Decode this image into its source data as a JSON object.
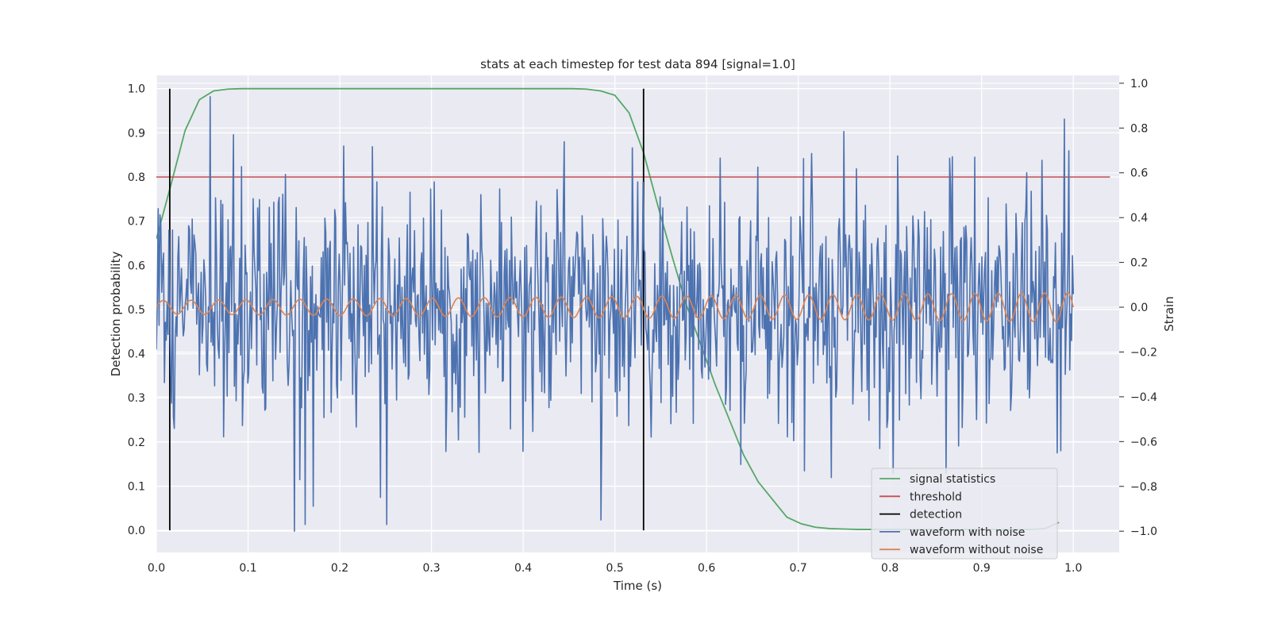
{
  "chart_data": {
    "type": "line",
    "title": "stats at each timestep for test data 894 [signal=1.0]",
    "xlabel": "Time (s)",
    "ylabel": "Detection probability",
    "y2label": "Strain",
    "xlim": [
      0.0,
      1.05
    ],
    "ylim": [
      -0.05,
      1.03
    ],
    "y2lim": [
      -1.095,
      1.035
    ],
    "grid": true,
    "legend_position": "lower right",
    "x_ticks": [
      "0.0",
      "0.1",
      "0.2",
      "0.3",
      "0.4",
      "0.5",
      "0.6",
      "0.7",
      "0.8",
      "0.9",
      "1.0"
    ],
    "y_ticks": [
      "0.0",
      "0.1",
      "0.2",
      "0.3",
      "0.4",
      "0.5",
      "0.6",
      "0.7",
      "0.8",
      "0.9",
      "1.0"
    ],
    "y2_ticks": [
      "−1.0",
      "−0.8",
      "−0.6",
      "−0.4",
      "−0.2",
      "0.0",
      "0.2",
      "0.4",
      "0.6",
      "0.8",
      "1.0"
    ],
    "series": [
      {
        "name": "signal statistics",
        "color": "#55a868",
        "axis": "left",
        "x": [
          0.0,
          0.0156,
          0.0313,
          0.0469,
          0.0625,
          0.0781,
          0.0938,
          0.1094,
          0.125,
          0.1406,
          0.1563,
          0.1719,
          0.1875,
          0.2031,
          0.2188,
          0.2344,
          0.25,
          0.2656,
          0.2813,
          0.2969,
          0.3125,
          0.3281,
          0.3438,
          0.3594,
          0.375,
          0.3906,
          0.4063,
          0.4219,
          0.4375,
          0.4531,
          0.4688,
          0.4844,
          0.5,
          0.5156,
          0.5313,
          0.5469,
          0.5625,
          0.5781,
          0.5938,
          0.6094,
          0.625,
          0.6406,
          0.6563,
          0.6719,
          0.6875,
          0.7031,
          0.7188,
          0.7344,
          0.75,
          0.7656,
          0.7813,
          0.7969,
          0.8125,
          0.8281,
          0.8438,
          0.8594,
          0.875,
          0.8906,
          0.9063,
          0.9219,
          0.9375,
          0.9531,
          0.9688,
          0.9844
        ],
        "values": [
          0.66,
          0.78,
          0.905,
          0.975,
          0.995,
          0.999,
          1.0,
          1.0,
          1.0,
          1.0,
          1.0,
          1.0,
          1.0,
          1.0,
          1.0,
          1.0,
          1.0,
          1.0,
          1.0,
          1.0,
          1.0,
          1.0,
          1.0,
          1.0,
          1.0,
          1.0,
          1.0,
          1.0,
          1.0,
          1.0,
          0.999,
          0.995,
          0.985,
          0.945,
          0.855,
          0.735,
          0.62,
          0.51,
          0.42,
          0.33,
          0.25,
          0.17,
          0.11,
          0.07,
          0.03,
          0.015,
          0.007,
          0.004,
          0.003,
          0.002,
          0.002,
          0.002,
          0.002,
          0.002,
          0.002,
          0.002,
          0.002,
          0.002,
          0.002,
          0.002,
          0.002,
          0.002,
          0.004,
          0.018
        ]
      },
      {
        "name": "threshold",
        "color": "#c44e52",
        "axis": "left",
        "x": [
          0.0,
          1.04
        ],
        "values": [
          0.8,
          0.8
        ]
      },
      {
        "name": "detection",
        "color": "#000000",
        "axis": "left",
        "x": [
          0.0146,
          0.0146,
          0.5313,
          0.5313
        ],
        "values": [
          0.0,
          1.0,
          0.0,
          1.0
        ]
      },
      {
        "name": "waveform with noise",
        "color": "#4c72b0",
        "axis": "right",
        "n_points": 1024,
        "x_range": [
          0.0,
          1.0
        ],
        "values": [],
        "noise_sigma": 0.27,
        "peaks": [
          {
            "x": 0.059,
            "y": 0.94
          },
          {
            "x": 0.0845,
            "y": 0.77
          },
          {
            "x": 0.151,
            "y": -1.0
          },
          {
            "x": 0.156,
            "y": -0.77
          },
          {
            "x": 0.204,
            "y": 0.72
          },
          {
            "x": 0.485,
            "y": -0.95
          },
          {
            "x": 0.99,
            "y": 0.84
          },
          {
            "x": 0.861,
            "y": -0.74
          }
        ]
      },
      {
        "name": "waveform without noise",
        "color": "#dd8452",
        "axis": "right",
        "n_points": 1024,
        "x_range": [
          0.0,
          1.0
        ],
        "values": [],
        "start_freq_hz": 33,
        "end_freq_hz": 40,
        "start_amplitude": 0.03,
        "end_amplitude": 0.065
      }
    ]
  }
}
